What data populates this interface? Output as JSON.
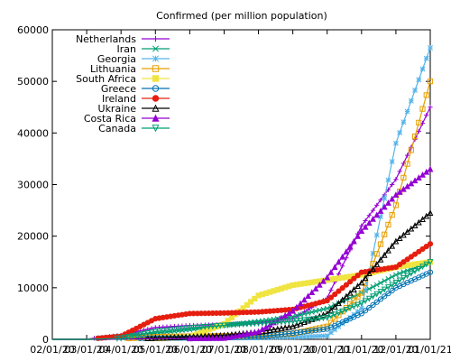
{
  "chart_data": {
    "type": "line",
    "title": "Confirmed (per million population)",
    "xlabel": "",
    "ylabel": "",
    "ylim": [
      0,
      60000
    ],
    "yticks": [
      0,
      10000,
      20000,
      30000,
      40000,
      50000,
      60000
    ],
    "x": [
      "02/01/20",
      "03/01/20",
      "04/01/20",
      "05/01/20",
      "06/01/20",
      "07/01/20",
      "08/01/20",
      "09/01/20",
      "10/01/20",
      "11/01/20",
      "12/01/20",
      "01/01/21"
    ],
    "x_tick_labels": [
      "02/01/20",
      "03/01/20",
      "04/01/20",
      "05/01/20",
      "06/01/20",
      "07/01/20",
      "08/01/20",
      "09/01/20",
      "10/01/20",
      "11/01/20",
      "12/01/20",
      "01/01/21"
    ],
    "grid": false,
    "legend": "top-left",
    "series": [
      {
        "name": "Netherlands",
        "color": "#9400d3",
        "marker": "plus",
        "values": [
          0,
          50,
          800,
          2300,
          2700,
          2900,
          3200,
          4000,
          8000,
          22000,
          31000,
          45000
        ]
      },
      {
        "name": "Iran",
        "color": "#009e73",
        "marker": "x",
        "values": [
          0,
          20,
          600,
          1200,
          1900,
          2700,
          3500,
          4400,
          6000,
          9000,
          12500,
          15000
        ]
      },
      {
        "name": "Georgia",
        "color": "#56b4e9",
        "marker": "star",
        "values": [
          0,
          0,
          30,
          150,
          220,
          250,
          330,
          400,
          700,
          6000,
          38000,
          56500
        ]
      },
      {
        "name": "Lithuania",
        "color": "#e69f00",
        "marker": "open-square",
        "values": [
          0,
          0,
          100,
          500,
          600,
          650,
          700,
          1100,
          2500,
          9000,
          26000,
          50000
        ]
      },
      {
        "name": "South Africa",
        "color": "#f0e442",
        "marker": "filled-square",
        "values": [
          0,
          0,
          30,
          150,
          500,
          3000,
          8500,
          10500,
          11500,
          12500,
          14000,
          15000
        ]
      },
      {
        "name": "Greece",
        "color": "#0072b2",
        "marker": "open-circle",
        "values": [
          0,
          0,
          100,
          250,
          300,
          330,
          450,
          1200,
          2000,
          5000,
          10000,
          13000
        ]
      },
      {
        "name": "Ireland",
        "color": "#e51e10",
        "marker": "filled-circle",
        "values": [
          0,
          0,
          600,
          4000,
          5000,
          5100,
          5300,
          5800,
          7500,
          13000,
          14000,
          18500
        ]
      },
      {
        "name": "Ukraine",
        "color": "#000000",
        "marker": "open-triangle",
        "values": [
          0,
          0,
          20,
          250,
          500,
          800,
          1400,
          2500,
          5000,
          11000,
          19000,
          24500
        ]
      },
      {
        "name": "Costa Rica",
        "color": "#9400d3",
        "marker": "filled-triangle",
        "values": [
          0,
          0,
          50,
          130,
          180,
          250,
          1500,
          5500,
          12000,
          21000,
          28000,
          33000
        ]
      },
      {
        "name": "Canada",
        "color": "#009e73",
        "marker": "open-triangle-down",
        "values": [
          0,
          0,
          200,
          1500,
          2200,
          2700,
          3100,
          3500,
          4200,
          7000,
          11000,
          15000
        ]
      }
    ]
  }
}
